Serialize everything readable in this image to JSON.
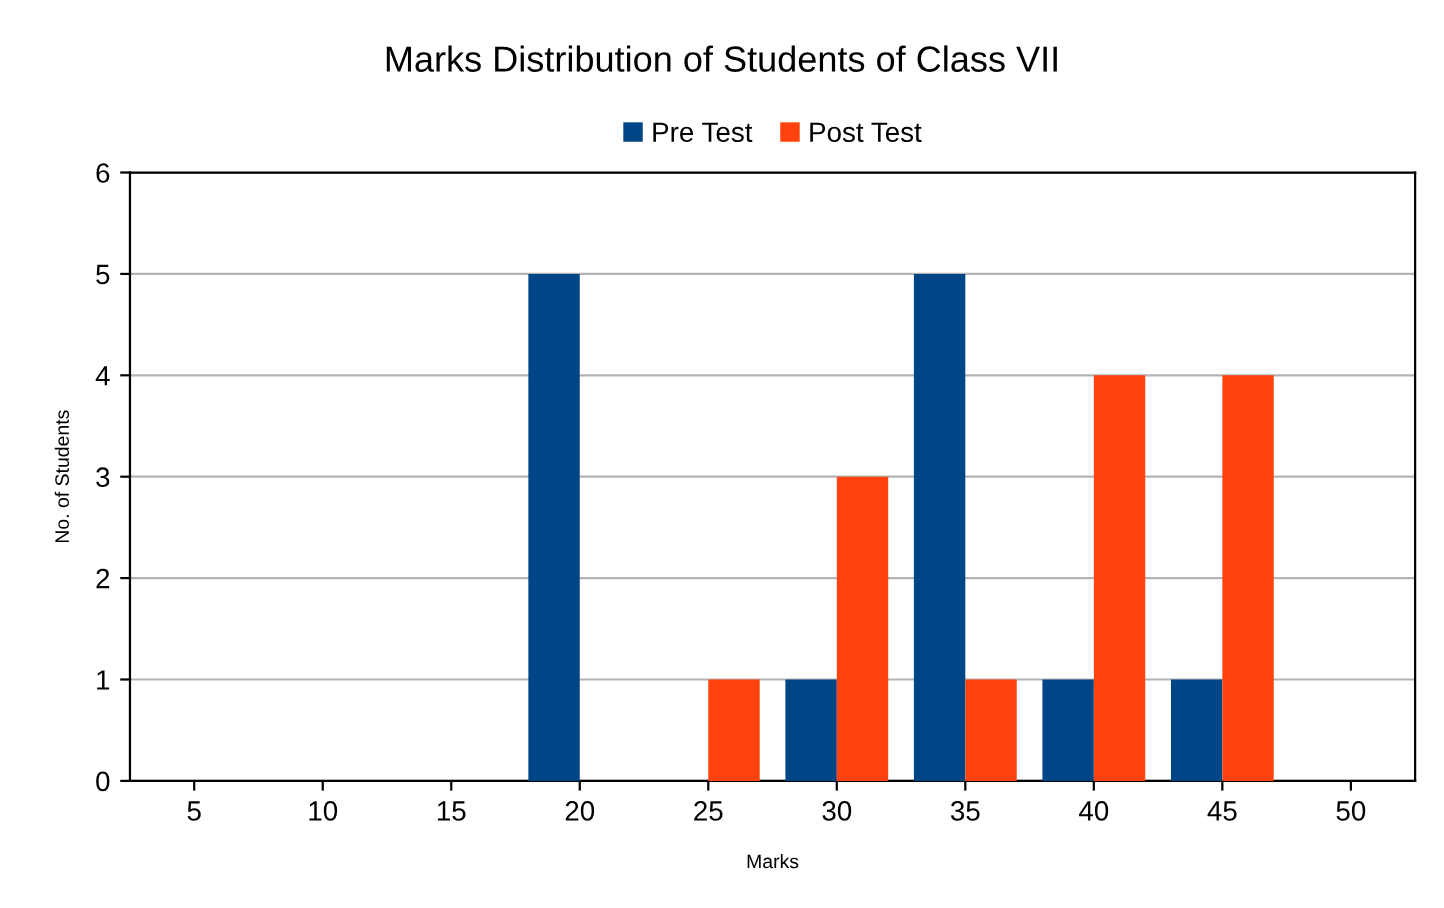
{
  "chart_data": {
    "type": "bar",
    "title": "Marks Distribution of Students of Class VII",
    "xlabel": "Marks",
    "ylabel": "No. of Students",
    "categories": [
      "5",
      "10",
      "15",
      "20",
      "25",
      "30",
      "35",
      "40",
      "45",
      "50"
    ],
    "series": [
      {
        "name": "Pre Test",
        "color": "#004586",
        "values": [
          0,
          0,
          0,
          5,
          0,
          1,
          5,
          1,
          1,
          0
        ]
      },
      {
        "name": "Post Test",
        "color": "#ff420e",
        "values": [
          0,
          0,
          0,
          0,
          1,
          3,
          1,
          4,
          4,
          0
        ]
      }
    ],
    "ylim": [
      0,
      6
    ],
    "yticks": [
      0,
      1,
      2,
      3,
      4,
      5,
      6
    ],
    "grid": "y",
    "legend": "top"
  }
}
